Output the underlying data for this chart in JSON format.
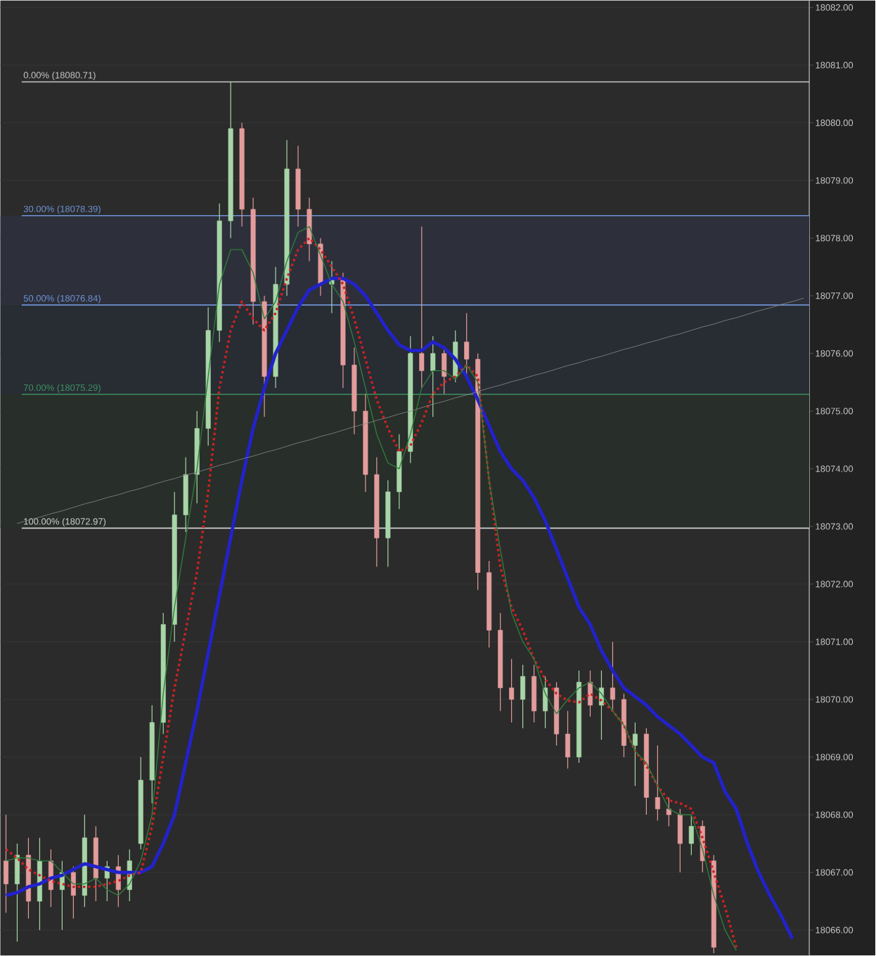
{
  "chart_data": {
    "type": "candlestick",
    "categories": [
      null,
      null,
      null,
      null,
      null,
      null,
      null,
      null,
      null,
      null,
      null,
      null,
      null,
      null,
      null,
      null,
      null,
      null,
      null,
      null,
      null,
      null,
      null,
      null,
      null,
      null,
      null,
      null,
      null,
      null,
      null,
      null,
      null,
      null,
      null,
      null,
      null,
      null,
      null,
      null,
      null,
      null,
      null,
      null,
      null,
      null,
      null,
      null,
      null,
      null,
      null,
      null,
      null,
      null,
      null,
      null,
      null,
      null,
      null,
      null,
      null,
      null,
      null,
      null,
      null,
      null,
      null,
      null,
      null,
      null,
      null,
      null
    ],
    "ohlc": [
      [
        18067.2,
        18068.0,
        18066.3,
        18066.8
      ],
      [
        18066.8,
        18067.5,
        18065.8,
        18067.3
      ],
      [
        18067.3,
        18067.6,
        18066.2,
        18066.5
      ],
      [
        18066.5,
        18067.6,
        18066.0,
        18067.2
      ],
      [
        18067.2,
        18067.4,
        18066.4,
        18066.7
      ],
      [
        18066.7,
        18067.2,
        18066.0,
        18067.0
      ],
      [
        18067.0,
        18067.1,
        18066.2,
        18066.6
      ],
      [
        18066.6,
        18068.0,
        18066.4,
        18067.6
      ],
      [
        18067.6,
        18067.8,
        18066.5,
        18066.9
      ],
      [
        18066.9,
        18067.2,
        18066.5,
        18067.1
      ],
      [
        18067.1,
        18067.3,
        18066.4,
        18066.7
      ],
      [
        18066.7,
        18067.4,
        18066.5,
        18067.2
      ],
      [
        18067.5,
        18069.0,
        18067.4,
        18068.6
      ],
      [
        18068.6,
        18069.9,
        18068.2,
        18069.6
      ],
      [
        18069.6,
        18071.5,
        18069.4,
        18071.3
      ],
      [
        18071.3,
        18073.6,
        18071.0,
        18073.2
      ],
      [
        18073.2,
        18074.2,
        18072.9,
        18073.9
      ],
      [
        18073.9,
        18075.0,
        18073.4,
        18074.7
      ],
      [
        18074.7,
        18076.8,
        18074.4,
        18076.4
      ],
      [
        18076.4,
        18078.6,
        18076.2,
        18078.3
      ],
      [
        18078.3,
        18080.71,
        18078.0,
        18079.9
      ],
      [
        18079.9,
        18080.0,
        18078.2,
        18078.5
      ],
      [
        18078.5,
        18078.7,
        18076.5,
        18076.9
      ],
      [
        18076.9,
        18077.0,
        18074.9,
        18075.6
      ],
      [
        18075.6,
        18077.5,
        18075.4,
        18077.2
      ],
      [
        18077.2,
        18079.7,
        18077.0,
        18079.2
      ],
      [
        18079.2,
        18079.6,
        18078.2,
        18078.5
      ],
      [
        18078.5,
        18078.7,
        18077.6,
        18077.9
      ],
      [
        18077.9,
        18078.0,
        18077.0,
        18077.2
      ],
      [
        18077.2,
        18077.6,
        18076.7,
        18077.3
      ],
      [
        18077.3,
        18077.4,
        18075.4,
        18075.8
      ],
      [
        18075.8,
        18076.1,
        18074.6,
        18075.0
      ],
      [
        18075.0,
        18075.3,
        18073.6,
        18073.9
      ],
      [
        18073.9,
        18074.2,
        18072.3,
        18072.8
      ],
      [
        18072.8,
        18073.8,
        18072.3,
        18073.6
      ],
      [
        18073.6,
        18074.6,
        18073.3,
        18074.3
      ],
      [
        18074.3,
        18076.3,
        18074.1,
        18076.0
      ],
      [
        18076.0,
        18078.2,
        18075.4,
        18075.7
      ],
      [
        18075.7,
        18076.3,
        18074.9,
        18076.0
      ],
      [
        18076.0,
        18076.1,
        18075.3,
        18075.6
      ],
      [
        18075.6,
        18076.4,
        18075.5,
        18076.2
      ],
      [
        18076.2,
        18076.7,
        18075.6,
        18075.9
      ],
      [
        18075.9,
        18076.0,
        18071.9,
        18072.2
      ],
      [
        18072.2,
        18072.4,
        18070.9,
        18071.2
      ],
      [
        18071.2,
        18071.5,
        18069.8,
        18070.2
      ],
      [
        18070.2,
        18070.7,
        18069.6,
        18070.0
      ],
      [
        18070.0,
        18070.6,
        18069.5,
        18070.4
      ],
      [
        18070.4,
        18070.6,
        18069.6,
        18069.8
      ],
      [
        18069.8,
        18070.4,
        18069.5,
        18070.2
      ],
      [
        18070.2,
        18070.3,
        18069.2,
        18069.4
      ],
      [
        18069.4,
        18069.8,
        18068.8,
        18069.0
      ],
      [
        18069.0,
        18070.5,
        18068.9,
        18070.3
      ],
      [
        18070.3,
        18070.5,
        18069.7,
        18069.9
      ],
      [
        18069.9,
        18070.5,
        18069.3,
        18070.2
      ],
      [
        18070.2,
        18071.0,
        18069.8,
        18070.0
      ],
      [
        18070.0,
        18070.1,
        18069.0,
        18069.2
      ],
      [
        18069.2,
        18069.6,
        18068.5,
        18069.4
      ],
      [
        18069.4,
        18069.5,
        18068.0,
        18068.3
      ],
      [
        18068.3,
        18069.2,
        18067.9,
        18068.1
      ],
      [
        18068.1,
        18068.3,
        18067.8,
        18068.0
      ],
      [
        18068.0,
        18068.1,
        18067.0,
        18067.5
      ],
      [
        18067.5,
        18068.0,
        18067.3,
        18067.8
      ],
      [
        18067.8,
        18067.9,
        18067.0,
        18067.2
      ],
      [
        18067.2,
        18067.3,
        18065.6,
        18065.7
      ],
      null,
      null,
      null,
      null,
      null,
      null,
      null,
      null
    ],
    "colors": [
      "#e39c9c",
      "#a8d5a8",
      "#e39c9c",
      "#a8d5a8",
      "#e39c9c",
      "#a8d5a8",
      "#e39c9c",
      "#a8d5a8",
      "#e39c9c",
      "#a8d5a8",
      "#e39c9c",
      "#a8d5a8",
      "#a8d5a8",
      "#a8d5a8",
      "#a8d5a8",
      "#a8d5a8",
      "#a8d5a8",
      "#a8d5a8",
      "#a8d5a8",
      "#a8d5a8",
      "#a8d5a8",
      "#e39c9c",
      "#e39c9c",
      "#e39c9c",
      "#a8d5a8",
      "#a8d5a8",
      "#e39c9c",
      "#e39c9c",
      "#e39c9c",
      "#a8d5a8",
      "#e39c9c",
      "#e39c9c",
      "#e39c9c",
      "#e39c9c",
      "#a8d5a8",
      "#a8d5a8",
      "#a8d5a8",
      "#e39c9c",
      "#a8d5a8",
      "#e39c9c",
      "#a8d5a8",
      "#e39c9c",
      "#e39c9c",
      "#e39c9c",
      "#e39c9c",
      "#e39c9c",
      "#a8d5a8",
      "#e39c9c",
      "#a8d5a8",
      "#e39c9c",
      "#e39c9c",
      "#a8d5a8",
      "#e39c9c",
      "#a8d5a8",
      "#e39c9c",
      "#e39c9c",
      "#a8d5a8",
      "#e39c9c",
      "#e39c9c",
      "#e39c9c",
      "#e39c9c",
      "#a8d5a8",
      "#e39c9c",
      "#e39c9c",
      null,
      null,
      null,
      null,
      null,
      null,
      null,
      null
    ],
    "series": [
      {
        "type": "line",
        "color": "#2222cc",
        "line_style": "solid",
        "values": [
          18066.6,
          18066.65,
          18066.75,
          18066.8,
          18066.9,
          18066.95,
          18067.05,
          18067.15,
          18067.1,
          18067.05,
          18067.0,
          18067.0,
          18067.0,
          18067.1,
          18067.5,
          18068.0,
          18068.9,
          18069.8,
          18070.8,
          18071.8,
          18072.8,
          18073.8,
          18074.7,
          18075.4,
          18076.0,
          18076.4,
          18076.8,
          18077.1,
          18077.2,
          18077.3,
          18077.3,
          18077.2,
          18077.0,
          18076.7,
          18076.4,
          18076.15,
          18076.05,
          18076.05,
          18076.2,
          18076.1,
          18075.9,
          18075.6,
          18075.2,
          18074.75,
          18074.3,
          18074.0,
          18073.8,
          18073.5,
          18073.1,
          18072.6,
          18072.1,
          18071.6,
          18071.3,
          18070.85,
          18070.5,
          18070.2,
          18070.05,
          18069.9,
          18069.7,
          18069.55,
          18069.4,
          18069.2,
          18069.0,
          18068.9,
          18068.4,
          18068.1,
          18067.5,
          18067.0,
          18066.6,
          18066.25,
          18065.85,
          null
        ]
      },
      {
        "type": "line",
        "color": "#cc2222",
        "line_style": "dotted",
        "values": [
          18067.4,
          18067.25,
          18067.05,
          18066.95,
          18066.85,
          18066.8,
          18066.75,
          18066.75,
          18066.75,
          18066.8,
          18066.85,
          18066.95,
          18067.0,
          18067.8,
          18069.0,
          18070.2,
          18071.2,
          18072.2,
          18073.6,
          18075.4,
          18076.4,
          18076.9,
          18076.6,
          18076.4,
          18076.7,
          18077.3,
          18077.8,
          18078.0,
          18077.8,
          18077.5,
          18077.2,
          18076.6,
          18075.9,
          18075.2,
          18074.7,
          18074.3,
          18074.4,
          18074.8,
          18075.3,
          18075.5,
          18075.6,
          18075.8,
          18075.6,
          18073.8,
          18072.3,
          18071.6,
          18071.2,
          18070.7,
          18070.35,
          18070.1,
          18069.98,
          18069.95,
          18070.1,
          18069.98,
          18069.8,
          18069.55,
          18069.1,
          18068.85,
          18068.5,
          18068.25,
          18068.2,
          18068.1,
          18067.6,
          18067.0,
          18066.4,
          18065.7,
          null,
          null,
          null,
          null,
          null,
          null
        ]
      },
      {
        "type": "line",
        "color": "#2e7d3a",
        "line_style": "solid",
        "values": [
          18067.2,
          18067.25,
          18067.25,
          18067.2,
          18067.2,
          18067.0,
          18066.8,
          18066.8,
          18066.9,
          18066.7,
          18066.6,
          18066.8,
          18067.2,
          18068.0,
          18070.1,
          18071.6,
          18072.8,
          18074.0,
          18075.6,
          18077.2,
          18077.8,
          18077.8,
          18077.4,
          18076.6,
          18076.9,
          18077.6,
          18078.1,
          18078.2,
          18077.7,
          18077.2,
          18076.9,
          18076.2,
          18075.4,
          18074.6,
          18074.1,
          18074.0,
          18074.6,
          18075.4,
          18075.7,
          18075.7,
          18075.55,
          18075.8,
          18075.5,
          18073.8,
          18072.6,
          18071.5,
          18071.0,
          18070.7,
          18070.1,
          18069.75,
          18070.0,
          18070.2,
          18070.3,
          18070.1,
          18069.8,
          18069.55,
          18069.1,
          18068.9,
          18068.5,
          18068.1,
          18068.0,
          18068.0,
          18067.4,
          18066.6,
          18066.0,
          18065.65,
          null,
          null,
          null,
          null,
          null,
          null
        ]
      },
      {
        "type": "line",
        "color": "#8a8a8a",
        "line_style": "solid",
        "values": [
          null,
          18073.05,
          18073.11,
          18073.16,
          18073.22,
          18073.27,
          18073.33,
          18073.39,
          18073.44,
          18073.5,
          18073.55,
          18073.61,
          18073.66,
          18073.72,
          18073.78,
          18073.83,
          18073.89,
          18073.94,
          18074.0,
          18074.06,
          18074.11,
          18074.17,
          18074.22,
          18074.28,
          18074.33,
          18074.39,
          18074.45,
          18074.5,
          18074.56,
          18074.61,
          18074.67,
          18074.73,
          18074.78,
          18074.84,
          18074.89,
          18074.95,
          18075.0,
          18075.06,
          18075.12,
          18075.17,
          18075.23,
          18075.28,
          18075.34,
          18075.4,
          18075.45,
          18075.51,
          18075.56,
          18075.62,
          18075.67,
          18075.73,
          18075.79,
          18075.84,
          18075.9,
          18075.95,
          18076.01,
          18076.07,
          18076.12,
          18076.18,
          18076.23,
          18076.29,
          18076.34,
          18076.4,
          18076.46,
          18076.51,
          18076.57,
          18076.62,
          18076.68,
          18076.74,
          18076.79,
          18076.85,
          18076.9,
          18076.96
        ]
      }
    ],
    "ref_lines": [
      {
        "axis": "y",
        "value": 18080.71,
        "label": "0.00% (18080.71)",
        "color": "#c8c8c8"
      },
      {
        "axis": "y",
        "value": 18078.39,
        "label": "30.00% (18078.39)",
        "color": "#6f93d6"
      },
      {
        "axis": "y",
        "value": 18076.84,
        "label": "50.00% (18076.84)",
        "color": "#6f93d6"
      },
      {
        "axis": "y",
        "value": 18075.29,
        "label": "70.00% (18075.29)",
        "color": "#3d9160"
      },
      {
        "axis": "y",
        "value": 18072.97,
        "label": "100.00% (18072.97)",
        "color": "#d0d0d0"
      }
    ],
    "bands": [
      {
        "axis": "y",
        "from": 18076.84,
        "to": 18078.39,
        "color": "#2d303b"
      },
      {
        "axis": "y",
        "from": 18075.29,
        "to": 18076.84,
        "color": "#282c33"
      },
      {
        "axis": "y",
        "from": 18072.97,
        "to": 18075.29,
        "color": "#282e29"
      }
    ],
    "ylim": [
      18065.56,
      18082.12
    ],
    "yticks": [
      {
        "value": 18066,
        "label": "18066.00"
      },
      {
        "value": 18067,
        "label": "18067.00"
      },
      {
        "value": 18068,
        "label": "18068.00"
      },
      {
        "value": 18069,
        "label": "18069.00"
      },
      {
        "value": 18070,
        "label": "18070.00"
      },
      {
        "value": 18071,
        "label": "18071.00"
      },
      {
        "value": 18072,
        "label": "18072.00"
      },
      {
        "value": 18073,
        "label": "18073.00"
      },
      {
        "value": 18074,
        "label": "18074.00"
      },
      {
        "value": 18075,
        "label": "18075.00"
      },
      {
        "value": 18076,
        "label": "18076.00"
      },
      {
        "value": 18077,
        "label": "18077.00"
      },
      {
        "value": 18078,
        "label": "18078.00"
      },
      {
        "value": 18079,
        "label": "18079.00"
      },
      {
        "value": 18080,
        "label": "18080.00"
      },
      {
        "value": 18081,
        "label": "18081.00"
      },
      {
        "value": 18082,
        "label": "18082.00"
      }
    ],
    "grid": "y",
    "tick_labels": "y"
  }
}
